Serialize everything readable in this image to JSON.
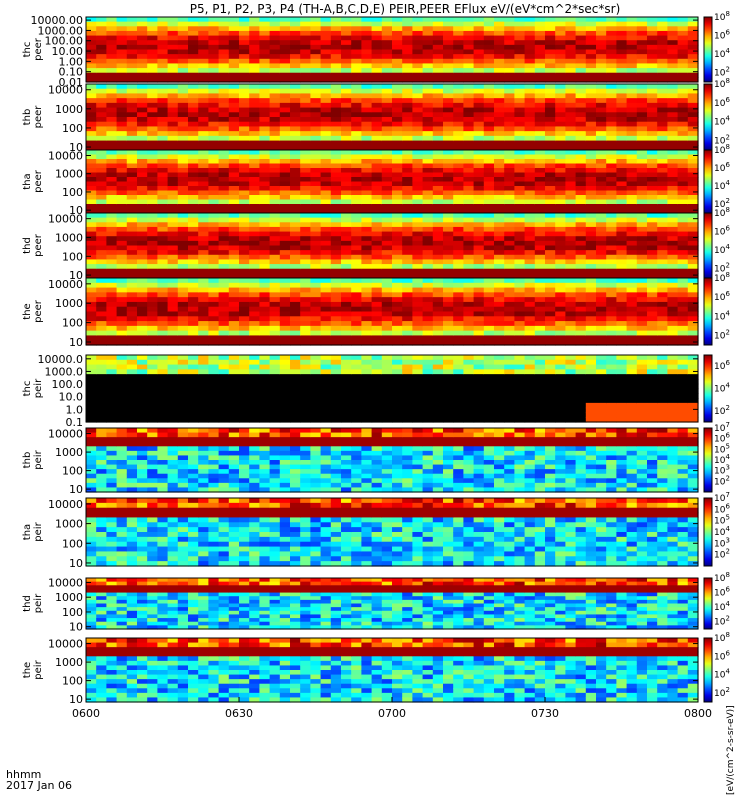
{
  "chart_data": {
    "type": "heatmap",
    "title": "P5, P1, P2, P3, P4 (TH-A,B,C,D,E) PEIR,PEER EFlux eV/(eV*cm^2*sec*sr)",
    "xlabel_line1": "hhmm",
    "xlabel_line2": "2017 Jan 06",
    "x_range": [
      "0600",
      "0800"
    ],
    "x_ticks": [
      "0600",
      "0630",
      "0700",
      "0730",
      "0800"
    ],
    "colorbar_label": "[eV/(cm^2-s-sr-eV)]",
    "panels": [
      {
        "label": "thc\npeer",
        "y_ticks": [
          "10000.00",
          "1000.00",
          "100.00",
          "10.00",
          "1.00",
          "0.10",
          "0.01"
        ],
        "y_range": [
          0.01,
          20000
        ],
        "scale": "log",
        "colorbar": [
          "10^8",
          "10^6",
          "10^4",
          "10^2"
        ],
        "cmin_exp": 1,
        "cmax_exp": 8
      },
      {
        "label": "thb\npeer",
        "y_ticks": [
          "10000",
          "1000",
          "100",
          "10"
        ],
        "y_range": [
          7,
          20000
        ],
        "scale": "log",
        "colorbar": [
          "10^8",
          "10^6",
          "10^4",
          "10^2"
        ],
        "cmin_exp": 1,
        "cmax_exp": 8
      },
      {
        "label": "tha\npeer",
        "y_ticks": [
          "10000",
          "1000",
          "100",
          "10"
        ],
        "y_range": [
          7,
          20000
        ],
        "scale": "log",
        "colorbar": [
          "10^8",
          "10^6",
          "10^4",
          "10^2"
        ],
        "cmin_exp": 1,
        "cmax_exp": 8
      },
      {
        "label": "thd\npeer",
        "y_ticks": [
          "10000",
          "1000",
          "100",
          "10"
        ],
        "y_range": [
          7,
          20000
        ],
        "scale": "log",
        "colorbar": [
          "10^8",
          "10^6",
          "10^4",
          "10^2"
        ],
        "cmin_exp": 1,
        "cmax_exp": 8
      },
      {
        "label": "the\npeer",
        "y_ticks": [
          "10000",
          "1000",
          "100",
          "10"
        ],
        "y_range": [
          7,
          20000
        ],
        "scale": "log",
        "colorbar": [
          "10^8",
          "10^6",
          "10^4",
          "10^2"
        ],
        "cmin_exp": 1,
        "cmax_exp": 8
      },
      {
        "label": "thc\npeir",
        "y_ticks": [
          "10000.0",
          "1000.0",
          "100.0",
          "10.0",
          "1.0",
          "0.1"
        ],
        "y_range": [
          0.1,
          20000
        ],
        "scale": "log",
        "colorbar": [
          "10^6",
          "10^4",
          "10^2"
        ],
        "cmin_exp": 1,
        "cmax_exp": 7
      },
      {
        "label": "thb\npeir",
        "y_ticks": [
          "10000",
          "1000",
          "100",
          "10"
        ],
        "y_range": [
          7,
          20000
        ],
        "scale": "log",
        "colorbar": [
          "10^7",
          "10^6",
          "10^5",
          "10^4",
          "10^3",
          "10^2"
        ],
        "cmin_exp": 1,
        "cmax_exp": 7
      },
      {
        "label": "tha\npeir",
        "y_ticks": [
          "10000",
          "1000",
          "100",
          "10"
        ],
        "y_range": [
          7,
          20000
        ],
        "scale": "log",
        "colorbar": [
          "10^7",
          "10^6",
          "10^5",
          "10^4",
          "10^3",
          "10^2"
        ],
        "cmin_exp": 1,
        "cmax_exp": 7
      },
      {
        "label": "thd\npeir",
        "y_ticks": [
          "10000",
          "1000",
          "100",
          "10"
        ],
        "y_range": [
          7,
          20000
        ],
        "scale": "log",
        "colorbar": [
          "10^8",
          "10^6",
          "10^4",
          "10^2"
        ],
        "cmin_exp": 1,
        "cmax_exp": 8
      },
      {
        "label": "the\npeir",
        "y_ticks": [
          "10000",
          "1000",
          "100",
          "10"
        ],
        "y_range": [
          7,
          20000
        ],
        "scale": "log",
        "colorbar": [
          "10^8",
          "10^6",
          "10^4",
          "10^2"
        ],
        "cmin_exp": 1,
        "cmax_exp": 8
      }
    ]
  }
}
